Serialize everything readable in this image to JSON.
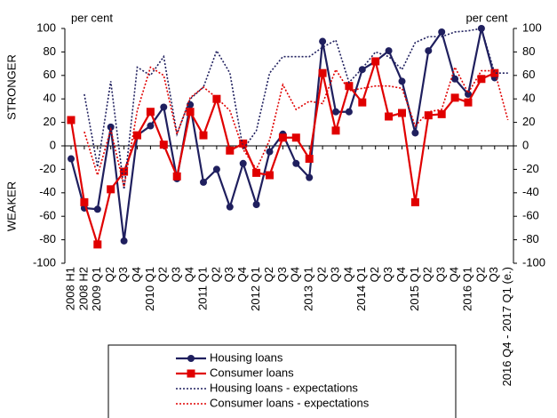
{
  "chart_data": {
    "type": "line",
    "y_label_top": "STRONGER",
    "y_label_bottom": "WEAKER",
    "unit_left": "per cent",
    "unit_right": "per cent",
    "categories": [
      "2008 H1",
      "2008 H2",
      "2009 Q1",
      "Q2",
      "Q3",
      "Q4",
      "2010 Q1",
      "Q2",
      "Q3",
      "Q4",
      "2011 Q1",
      "Q2",
      "Q3",
      "Q4",
      "2012 Q1",
      "Q2",
      "Q3",
      "Q4",
      "2013 Q1",
      "Q2",
      "Q3",
      "Q4",
      "2014 Q1",
      "Q2",
      "Q3",
      "Q4",
      "2015 Q1",
      "Q2",
      "Q3",
      "Q4",
      "2016 Q1",
      "Q2",
      "Q3",
      "2016 Q4 - 2017 Q1 (e.)"
    ],
    "series": [
      {
        "name": "Housing loans",
        "color": "#1f1f5e",
        "marker": "circle",
        "dashed": false,
        "values": [
          -11,
          -53,
          -54,
          16,
          -81,
          9,
          17,
          33,
          -28,
          35,
          -31,
          -20,
          -52,
          -15,
          -50,
          -5,
          10,
          -15,
          -27,
          89,
          29,
          29,
          65,
          72,
          81,
          55,
          11,
          81,
          97,
          57,
          44,
          100,
          58,
          null
        ]
      },
      {
        "name": "Consumer loans",
        "color": "#e00000",
        "marker": "square",
        "dashed": false,
        "values": [
          22,
          -48,
          -84,
          -37,
          -22,
          9,
          29,
          1,
          -26,
          29,
          9,
          40,
          -4,
          2,
          -23,
          -25,
          7,
          7,
          -11,
          62,
          13,
          51,
          37,
          72,
          25,
          28,
          -48,
          26,
          27,
          41,
          37,
          57,
          62,
          null
        ]
      },
      {
        "name": "Housing loans - expectations",
        "color": "#1f1f5e",
        "marker": null,
        "dashed": true,
        "values": [
          null,
          44,
          -18,
          55,
          -37,
          67,
          60,
          76,
          10,
          40,
          50,
          81,
          62,
          -3,
          13,
          62,
          76,
          76,
          76,
          84,
          90,
          54,
          66,
          80,
          76,
          65,
          88,
          93,
          93,
          97,
          98,
          100,
          62,
          62
        ]
      },
      {
        "name": "Consumer loans - expectations",
        "color": "#e00000",
        "marker": null,
        "dashed": true,
        "values": [
          null,
          12,
          -25,
          14,
          -35,
          30,
          67,
          60,
          10,
          41,
          50,
          41,
          30,
          -3,
          -20,
          5,
          52,
          31,
          38,
          36,
          65,
          47,
          49,
          51,
          51,
          49,
          17,
          29,
          31,
          67,
          45,
          64,
          64,
          22
        ]
      }
    ],
    "ylim": [
      -100,
      100
    ],
    "yticks": [
      -100,
      -80,
      -60,
      -40,
      -20,
      0,
      20,
      40,
      60,
      80,
      100
    ],
    "y2lim": [
      -100,
      100
    ],
    "y2ticks": [
      -100,
      -80,
      -60,
      -40,
      -20,
      0,
      20,
      40,
      60,
      80,
      100
    ],
    "grid": false
  }
}
